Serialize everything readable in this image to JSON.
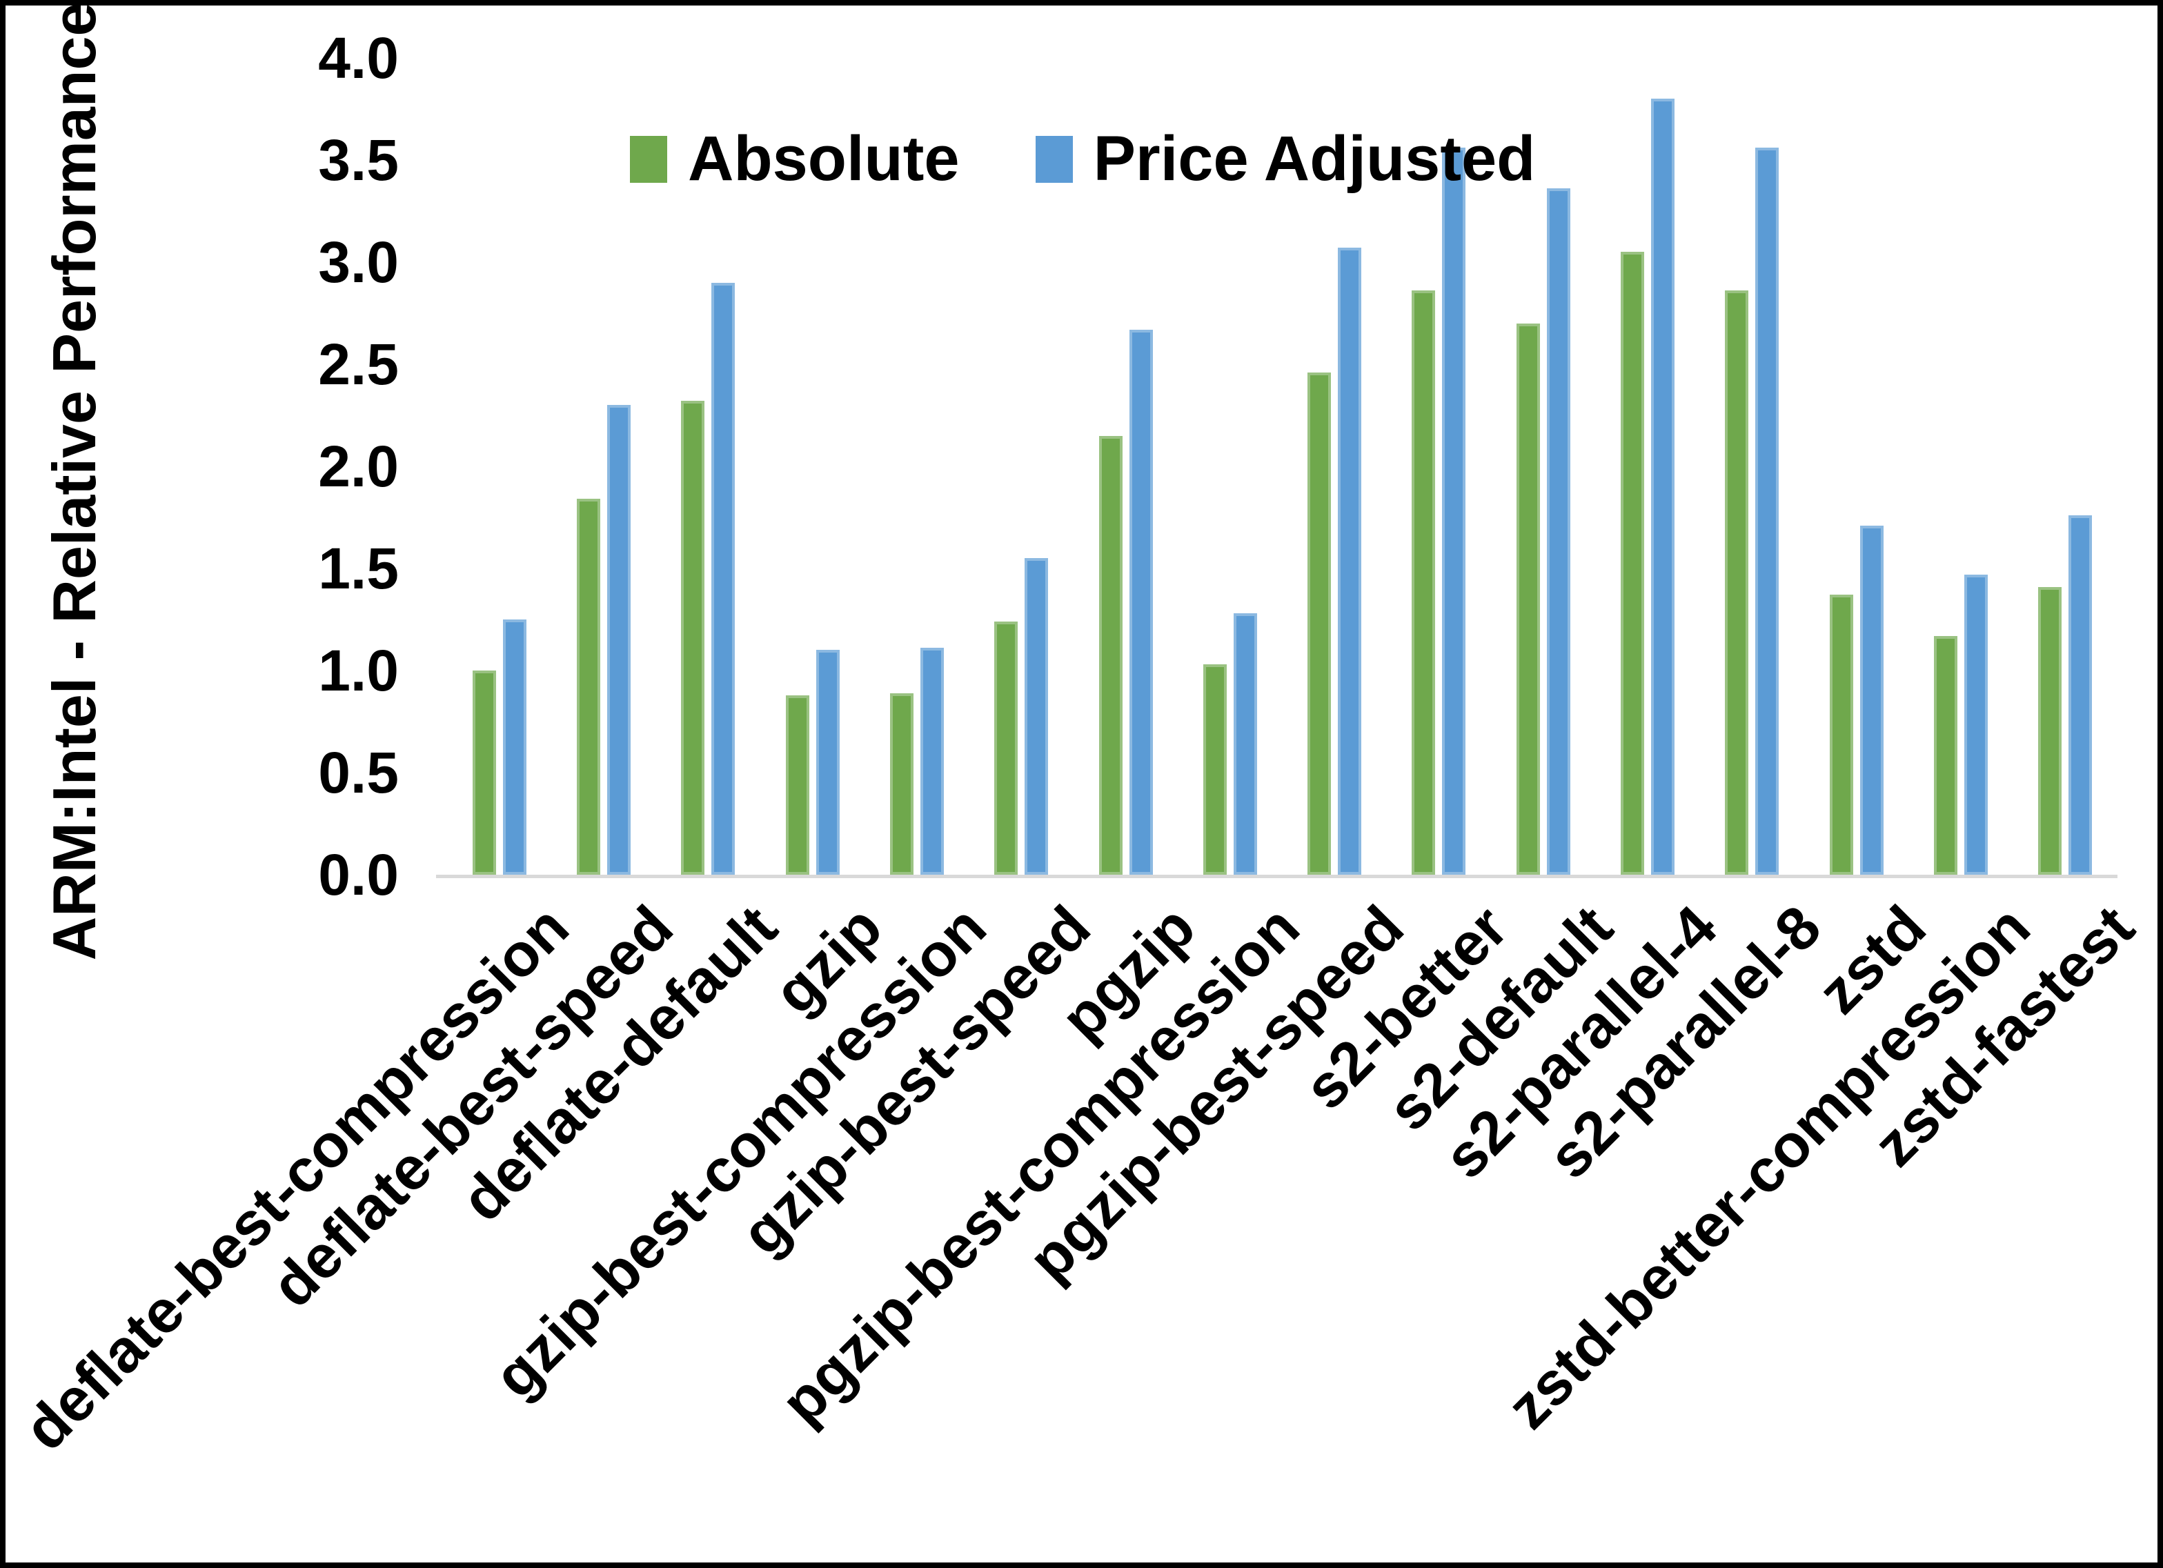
{
  "chart_data": {
    "type": "bar",
    "title": "",
    "ylabel": "ARM:Intel - Relative Performance",
    "xlabel": "",
    "ylim": [
      0.0,
      4.0
    ],
    "ytick_step": 0.5,
    "ytick_labels": [
      "4.0",
      "3.5",
      "3.0",
      "2.5",
      "2.0",
      "1.5",
      "1.0",
      "0.5",
      "0.0"
    ],
    "grid": "off",
    "legend_position": "top-center",
    "categories": [
      "deflate-best-compression",
      "deflate-best-speed",
      "deflate-default",
      "gzip",
      "gzip-best-compression",
      "gzip-best-speed",
      "pgzip",
      "pgzip-best-compression",
      "pgzip-best-speed",
      "s2-better",
      "s2-default",
      "s2-parallel-4",
      "s2-parallel-8",
      "zstd",
      "zstd-better-compression",
      "zstd-fastest"
    ],
    "series": [
      {
        "name": "Absolute",
        "color": "#6FA84C",
        "values": [
          1.0,
          1.84,
          2.32,
          0.88,
          0.89,
          1.24,
          2.15,
          1.03,
          2.46,
          2.86,
          2.7,
          3.05,
          2.86,
          1.37,
          1.17,
          1.41
        ]
      },
      {
        "name": "Price Adjusted",
        "color": "#5B9BD5",
        "values": [
          1.25,
          2.3,
          2.9,
          1.1,
          1.11,
          1.55,
          2.67,
          1.28,
          3.07,
          3.56,
          3.36,
          3.8,
          3.56,
          1.71,
          1.47,
          1.76
        ]
      }
    ],
    "axis_line_color": "#D9D9D9",
    "text_color": "#000000"
  }
}
